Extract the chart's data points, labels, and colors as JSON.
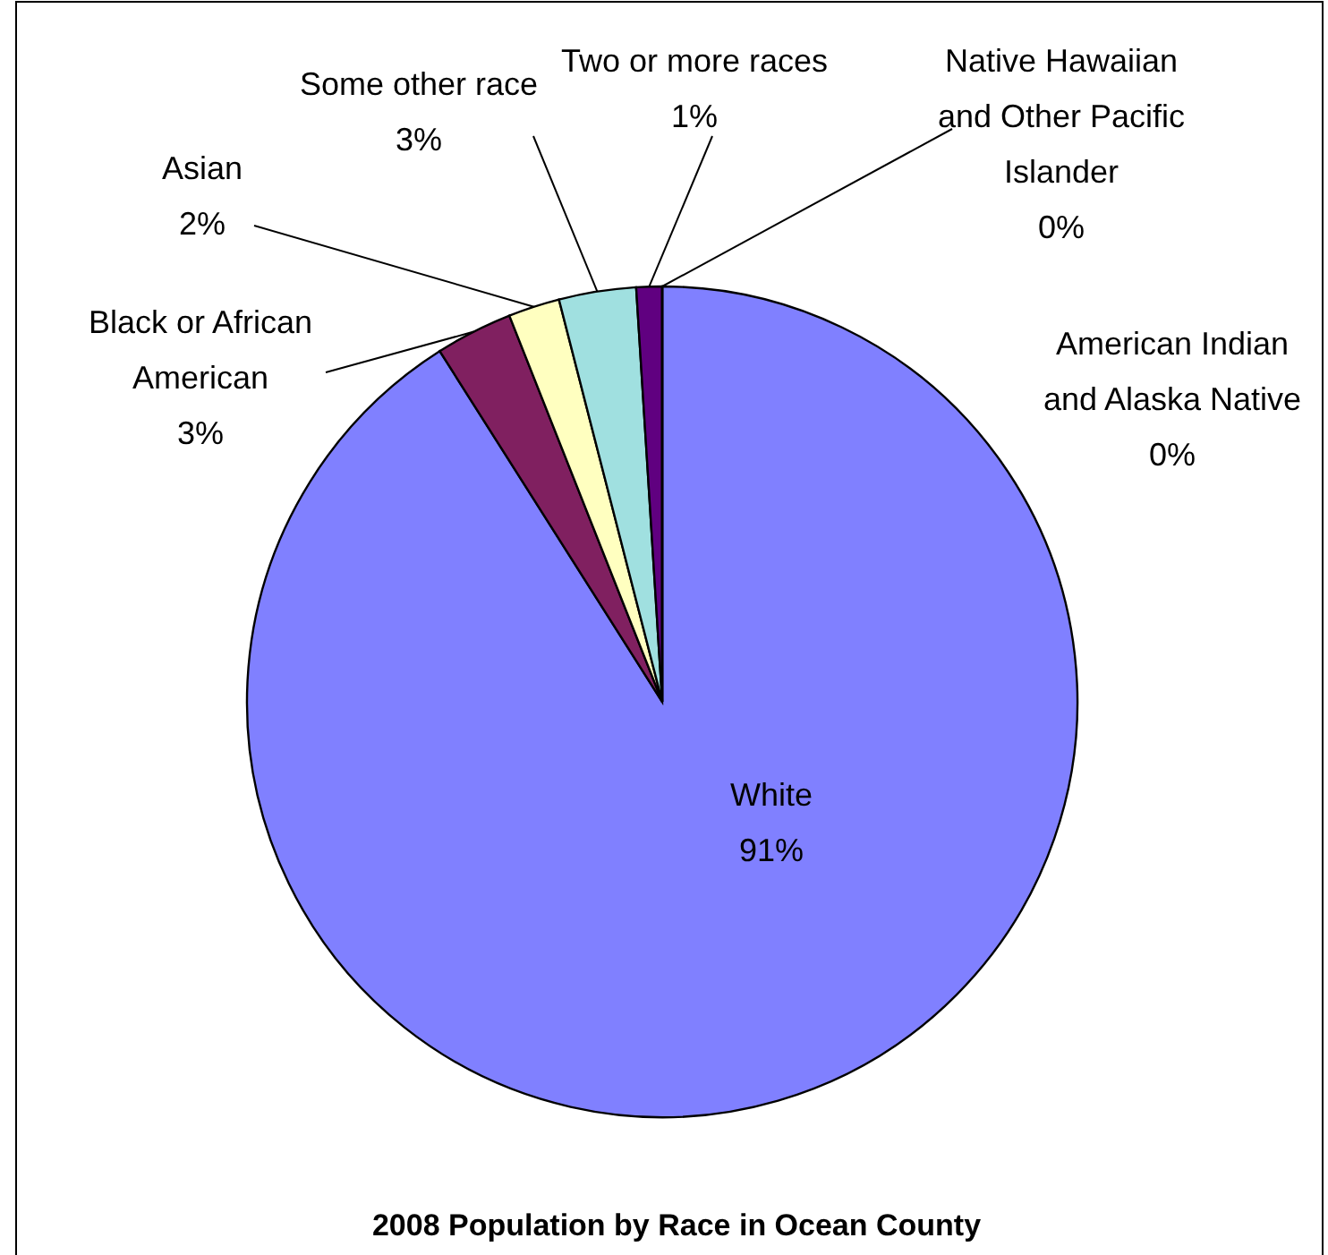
{
  "chart_data": {
    "type": "pie",
    "title": "2008 Population by Race in Ocean County",
    "categories": [
      "White",
      "Black or African American",
      "Asian",
      "Some other race",
      "Two or more races",
      "Native Hawaiian and Other Pacific Islander",
      "American Indian and Alaska Native"
    ],
    "values": [
      91,
      3,
      2,
      3,
      1,
      0,
      0
    ],
    "colors": [
      "#8080ff",
      "#802060",
      "#ffffc0",
      "#a0e0e0",
      "#600080",
      "#0066cc",
      "#ff8080"
    ],
    "value_labels": [
      "91%",
      "3%",
      "2%",
      "3%",
      "1%",
      "0%",
      "0%"
    ]
  }
}
